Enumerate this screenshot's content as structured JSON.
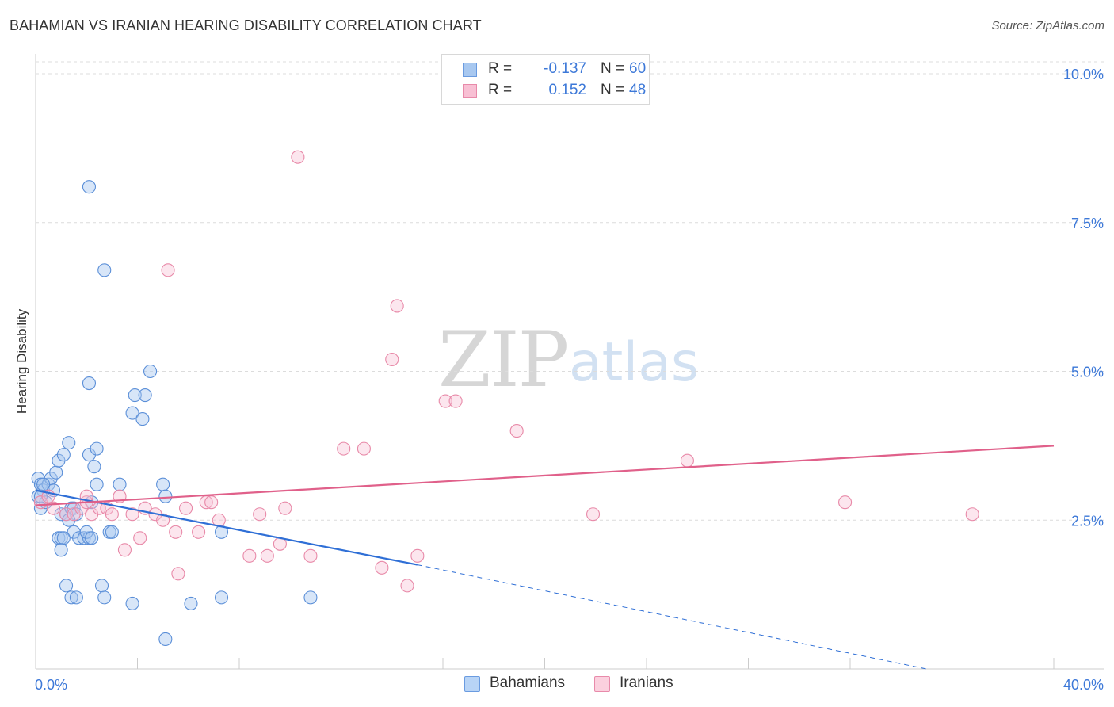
{
  "title": "BAHAMIAN VS IRANIAN HEARING DISABILITY CORRELATION CHART",
  "source": "Source: ZipAtlas.com",
  "watermark": {
    "zip": "ZIP",
    "atlas": "atlas"
  },
  "legend": {
    "series": [
      {
        "swatch_color": "#a8c8f0",
        "swatch_border": "#6a9be0",
        "r_label": "R =",
        "r_value": "-0.137",
        "n_label": "N =",
        "n_value": "60"
      },
      {
        "swatch_color": "#f8c0d4",
        "swatch_border": "#e88aaa",
        "r_label": "R =",
        "r_value": "0.152",
        "n_label": "N =",
        "n_value": "48"
      }
    ]
  },
  "bottom_legend": [
    {
      "label": "Bahamians",
      "swatch_color": "#b8d4f6",
      "swatch_border": "#6a9be0"
    },
    {
      "label": "Iranians",
      "swatch_color": "#fbd0de",
      "swatch_border": "#e88aaa"
    }
  ],
  "chart_data": {
    "type": "scatter",
    "title": "BAHAMIAN VS IRANIAN HEARING DISABILITY CORRELATION CHART",
    "xlabel": "",
    "ylabel": "Hearing Disability",
    "xlim": [
      0,
      40
    ],
    "ylim": [
      0,
      10.2
    ],
    "x_tick_labels": {
      "min": "0.0%",
      "max": "40.0%"
    },
    "y_ticks": [
      2.5,
      5.0,
      7.5,
      10.0
    ],
    "y_tick_labels": [
      "2.5%",
      "5.0%",
      "7.5%",
      "10.0%"
    ],
    "grid": true,
    "series": [
      {
        "name": "Bahamians",
        "color": "#5b8fd8",
        "fill": "rgba(168,200,240,0.45)",
        "trend": {
          "x": [
            0.0,
            15.0
          ],
          "y": [
            3.0,
            1.75
          ],
          "dashed_to": [
            35.0,
            0.0
          ],
          "color": "#2f6fd6"
        },
        "points": [
          [
            0.1,
            3.2
          ],
          [
            0.2,
            3.1
          ],
          [
            0.3,
            3.0
          ],
          [
            0.1,
            2.9
          ],
          [
            0.2,
            2.7
          ],
          [
            0.4,
            2.8
          ],
          [
            0.5,
            3.1
          ],
          [
            0.6,
            3.2
          ],
          [
            0.7,
            3.0
          ],
          [
            0.3,
            3.1
          ],
          [
            0.2,
            2.9
          ],
          [
            0.8,
            3.3
          ],
          [
            0.9,
            3.5
          ],
          [
            1.1,
            3.6
          ],
          [
            1.3,
            3.8
          ],
          [
            1.0,
            2.6
          ],
          [
            1.2,
            2.6
          ],
          [
            1.4,
            2.7
          ],
          [
            1.5,
            2.7
          ],
          [
            1.6,
            2.6
          ],
          [
            1.3,
            2.5
          ],
          [
            1.5,
            2.3
          ],
          [
            1.7,
            2.2
          ],
          [
            1.9,
            2.2
          ],
          [
            2.1,
            2.2
          ],
          [
            2.0,
            2.3
          ],
          [
            0.9,
            2.2
          ],
          [
            1.0,
            2.2
          ],
          [
            1.1,
            2.2
          ],
          [
            1.0,
            2.0
          ],
          [
            1.2,
            1.4
          ],
          [
            1.4,
            1.2
          ],
          [
            1.6,
            1.2
          ],
          [
            2.1,
            3.6
          ],
          [
            2.3,
            3.4
          ],
          [
            2.4,
            3.1
          ],
          [
            2.4,
            3.7
          ],
          [
            2.2,
            2.8
          ],
          [
            2.6,
            1.4
          ],
          [
            2.7,
            1.2
          ],
          [
            2.9,
            2.3
          ],
          [
            3.0,
            2.3
          ],
          [
            3.3,
            3.1
          ],
          [
            3.8,
            1.1
          ],
          [
            3.8,
            4.3
          ],
          [
            3.9,
            4.6
          ],
          [
            4.2,
            4.2
          ],
          [
            4.3,
            4.6
          ],
          [
            4.5,
            5.0
          ],
          [
            5.0,
            3.1
          ],
          [
            5.1,
            2.9
          ],
          [
            5.1,
            0.5
          ],
          [
            6.1,
            1.1
          ],
          [
            7.3,
            1.2
          ],
          [
            7.3,
            2.3
          ],
          [
            10.8,
            1.2
          ],
          [
            2.1,
            4.8
          ],
          [
            2.7,
            6.7
          ],
          [
            2.1,
            8.1
          ],
          [
            2.2,
            2.2
          ]
        ]
      },
      {
        "name": "Iranians",
        "color": "#e889a8",
        "fill": "rgba(248,192,212,0.40)",
        "trend": {
          "x": [
            0.0,
            40.0
          ],
          "y": [
            2.75,
            3.75
          ],
          "color": "#e0608a"
        },
        "points": [
          [
            0.2,
            2.8
          ],
          [
            0.5,
            2.9
          ],
          [
            0.7,
            2.7
          ],
          [
            1.2,
            2.6
          ],
          [
            1.5,
            2.6
          ],
          [
            1.8,
            2.7
          ],
          [
            2.0,
            2.8
          ],
          [
            2.2,
            2.6
          ],
          [
            2.5,
            2.7
          ],
          [
            2.8,
            2.7
          ],
          [
            3.0,
            2.6
          ],
          [
            3.3,
            2.9
          ],
          [
            3.8,
            2.6
          ],
          [
            3.5,
            2.0
          ],
          [
            4.1,
            2.2
          ],
          [
            4.3,
            2.7
          ],
          [
            4.7,
            2.6
          ],
          [
            5.0,
            2.5
          ],
          [
            5.5,
            2.3
          ],
          [
            5.6,
            1.6
          ],
          [
            5.9,
            2.7
          ],
          [
            6.4,
            2.3
          ],
          [
            6.7,
            2.8
          ],
          [
            6.9,
            2.8
          ],
          [
            7.2,
            2.5
          ],
          [
            8.4,
            1.9
          ],
          [
            8.8,
            2.6
          ],
          [
            9.1,
            1.9
          ],
          [
            9.6,
            2.1
          ],
          [
            9.8,
            2.7
          ],
          [
            10.8,
            1.9
          ],
          [
            12.1,
            3.7
          ],
          [
            12.9,
            3.7
          ],
          [
            13.6,
            1.7
          ],
          [
            14.0,
            5.2
          ],
          [
            14.2,
            6.1
          ],
          [
            14.6,
            1.4
          ],
          [
            15.0,
            1.9
          ],
          [
            16.1,
            4.5
          ],
          [
            16.5,
            4.5
          ],
          [
            18.9,
            4.0
          ],
          [
            21.9,
            2.6
          ],
          [
            25.6,
            3.5
          ],
          [
            31.8,
            2.8
          ],
          [
            36.8,
            2.6
          ],
          [
            10.3,
            8.6
          ],
          [
            5.2,
            6.7
          ],
          [
            2.0,
            2.9
          ]
        ]
      }
    ]
  }
}
